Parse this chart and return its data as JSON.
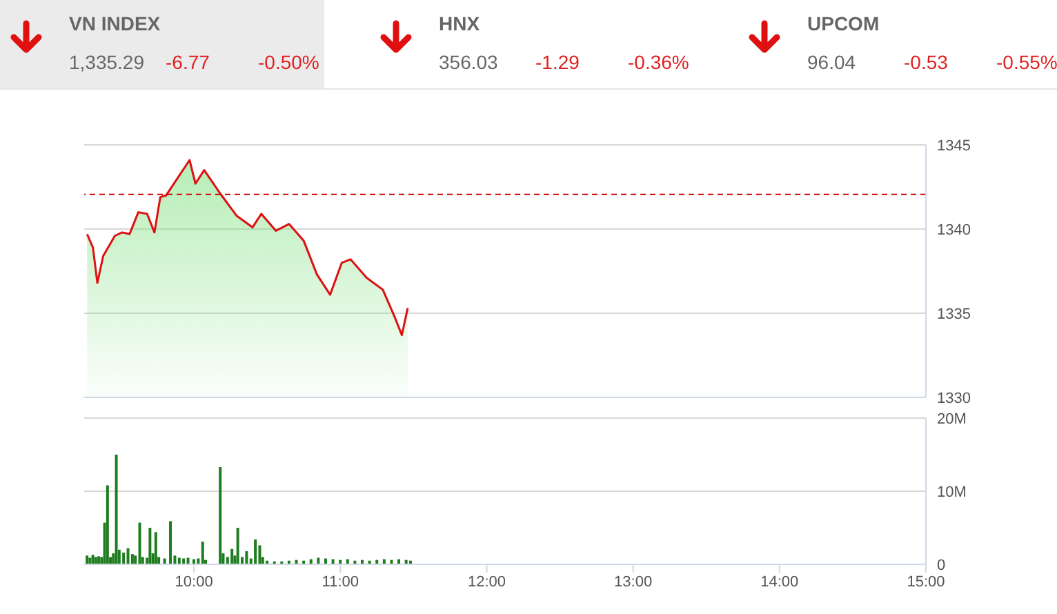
{
  "chart_data": [
    {
      "type": "other",
      "annotations": [
        "VN INDEX",
        "1,335.29",
        "-6.77",
        "-0.50%",
        "HNX",
        "356.03",
        "-1.29",
        "-0.36%",
        "UPCOM",
        "96.04",
        "-0.53",
        "-0.55%"
      ]
    },
    {
      "type": "area",
      "xlim": [
        9.25,
        15
      ],
      "ylim": [
        1330,
        1345
      ],
      "yticks": [
        1330,
        1335,
        1340,
        1345
      ],
      "grid": "y",
      "tick_labels": "y",
      "ref_lines": [
        {
          "axis": "y",
          "value": 1342.06,
          "color": "#cc0000",
          "line_style": "dashed"
        }
      ],
      "series": [
        {
          "color": "#dd1111",
          "x": [
            9.27,
            9.31,
            9.34,
            9.38,
            9.46,
            9.51,
            9.56,
            9.62,
            9.68,
            9.73,
            9.77,
            9.81,
            9.97,
            10.01,
            10.07,
            10.18,
            10.29,
            10.4,
            10.46,
            10.56,
            10.65,
            10.75,
            10.84,
            10.93,
            11.01,
            11.07,
            11.18,
            11.29,
            11.37,
            11.42,
            11.46
          ],
          "values": [
            1339.7,
            1338.9,
            1336.8,
            1338.4,
            1339.6,
            1339.8,
            1339.7,
            1341,
            1340.9,
            1339.8,
            1341.9,
            1342,
            1344.1,
            1342.7,
            1343.5,
            1342.1,
            1340.8,
            1340.1,
            1340.9,
            1339.9,
            1340.3,
            1339.3,
            1337.3,
            1336.1,
            1338,
            1338.2,
            1337.1,
            1336.4,
            1334.8,
            1333.7,
            1335.3
          ]
        }
      ]
    },
    {
      "type": "bar",
      "xlim": [
        9.25,
        15
      ],
      "xticks": [
        {
          "value": 10,
          "label": "10:00"
        },
        {
          "value": 11,
          "label": "11:00"
        },
        {
          "value": 12,
          "label": "12:00"
        },
        {
          "value": 13,
          "label": "13:00"
        },
        {
          "value": 14,
          "label": "14:00"
        },
        {
          "value": 15,
          "label": "15:00"
        }
      ],
      "ylim": [
        0,
        20
      ],
      "yticks": [
        {
          "value": 0,
          "label": "0"
        },
        {
          "value": 10,
          "label": "10M"
        },
        {
          "value": 20,
          "label": "20M"
        }
      ],
      "grid": "y",
      "series": [
        {
          "color": "#1e7d1e",
          "x": [
            9.27,
            9.29,
            9.31,
            9.33,
            9.35,
            9.37,
            9.39,
            9.41,
            9.43,
            9.45,
            9.47,
            9.49,
            9.52,
            9.55,
            9.58,
            9.6,
            9.63,
            9.65,
            9.68,
            9.7,
            9.72,
            9.74,
            9.76,
            9.8,
            9.84,
            9.87,
            9.9,
            9.93,
            9.96,
            10,
            10.03,
            10.06,
            10.08,
            10.18,
            10.2,
            10.23,
            10.26,
            10.28,
            10.3,
            10.33,
            10.36,
            10.39,
            10.42,
            10.45,
            10.47,
            10.5,
            10.55,
            10.6,
            10.65,
            10.7,
            10.75,
            10.8,
            10.85,
            10.9,
            10.95,
            11,
            11.05,
            11.1,
            11.15,
            11.2,
            11.25,
            11.3,
            11.35,
            11.4,
            11.45,
            11.48
          ],
          "values": [
            1.2,
            0.9,
            1.3,
            1,
            1.1,
            1,
            5.7,
            10.8,
            1,
            1.5,
            15,
            2,
            1.6,
            2.2,
            1.4,
            1.2,
            5.7,
            1,
            0.9,
            5,
            1.5,
            4.4,
            1,
            0.8,
            5.9,
            1.2,
            0.9,
            0.8,
            0.9,
            0.7,
            0.8,
            3.1,
            0.6,
            13.3,
            1.5,
            1,
            2.1,
            1.2,
            5,
            1,
            1.8,
            0.8,
            3.4,
            2.6,
            1,
            0.5,
            0.4,
            0.4,
            0.5,
            0.6,
            0.5,
            0.7,
            0.9,
            0.8,
            0.7,
            0.6,
            0.7,
            0.5,
            0.6,
            0.5,
            0.6,
            0.7,
            0.6,
            0.7,
            0.6,
            0.5
          ]
        }
      ]
    }
  ]
}
